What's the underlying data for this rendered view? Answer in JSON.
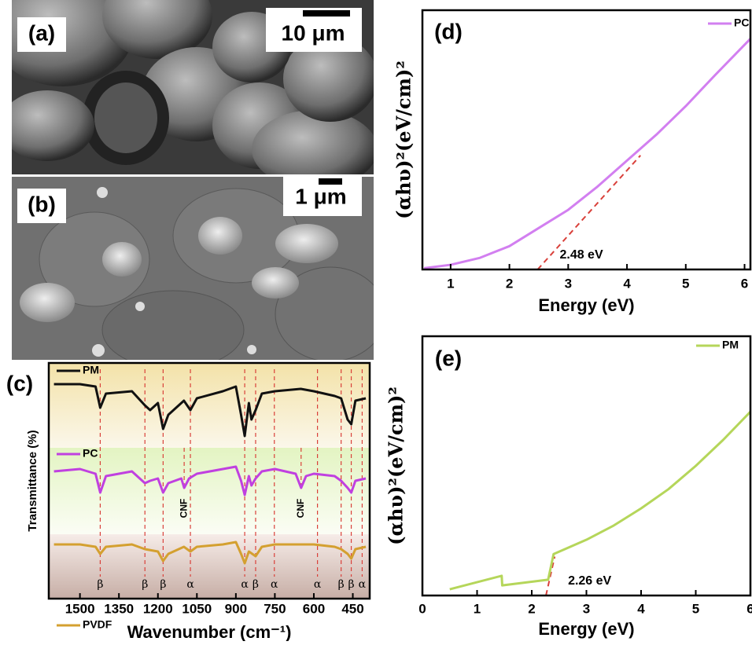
{
  "images": [
    {
      "label": "(a)",
      "scale_bar": "10 μm"
    },
    {
      "label": "(b)",
      "scale_bar": "1 μm"
    }
  ],
  "chart_data": [
    {
      "type": "line",
      "panel_label": "(c)",
      "xlabel": "Wavenumber (cm⁻¹)",
      "ylabel": "Transmittance (%)",
      "xlim": [
        1620,
        385
      ],
      "ylim": [
        0,
        100
      ],
      "xticks": [
        1500,
        1350,
        1200,
        1050,
        900,
        750,
        600,
        450
      ],
      "series": [
        {
          "name": "PM",
          "color": "#111111",
          "x": [
            1600,
            1500,
            1440,
            1422,
            1400,
            1300,
            1250,
            1230,
            1200,
            1180,
            1160,
            1100,
            1075,
            1050,
            950,
            900,
            880,
            866,
            850,
            840,
            824,
            800,
            750,
            650,
            600,
            520,
            495,
            470,
            456,
            440,
            400
          ],
          "values": [
            91,
            91,
            90,
            81,
            87,
            88,
            82,
            80,
            83,
            72,
            78,
            84,
            80,
            85,
            88,
            90,
            78,
            69,
            83,
            76,
            80,
            87,
            88,
            89,
            88,
            86,
            85,
            76,
            74,
            84,
            85
          ]
        },
        {
          "name": "PC",
          "color": "#c040e0",
          "x": [
            1600,
            1500,
            1440,
            1422,
            1400,
            1300,
            1250,
            1230,
            1200,
            1180,
            1160,
            1110,
            1099,
            1080,
            1050,
            950,
            900,
            880,
            866,
            850,
            840,
            824,
            800,
            750,
            670,
            649,
            630,
            600,
            520,
            495,
            470,
            456,
            440,
            400
          ],
          "values": [
            54,
            55,
            53,
            45,
            52,
            54,
            49,
            50,
            51,
            45,
            49,
            51,
            47,
            51,
            53,
            55,
            56,
            50,
            44,
            52,
            48,
            51,
            54,
            55,
            53,
            47,
            52,
            53,
            52,
            50,
            47,
            45,
            50,
            51
          ]
        },
        {
          "name": "PVDF",
          "color": "#d4a030",
          "x": [
            1600,
            1500,
            1440,
            1422,
            1400,
            1300,
            1250,
            1200,
            1180,
            1160,
            1100,
            1075,
            1050,
            950,
            900,
            880,
            866,
            850,
            824,
            800,
            750,
            600,
            520,
            495,
            470,
            456,
            440,
            400
          ],
          "values": [
            23,
            23,
            22,
            19,
            22,
            23,
            21,
            20,
            16,
            19,
            22,
            20,
            22,
            23,
            24,
            19,
            15,
            20,
            18,
            22,
            23,
            23,
            22,
            21,
            19,
            17,
            21,
            22
          ]
        }
      ],
      "band_markers": [
        {
          "x": 1422,
          "label": "β"
        },
        {
          "x": 1250,
          "label": "β"
        },
        {
          "x": 1180,
          "label": "β"
        },
        {
          "x": 1075,
          "label": "α"
        },
        {
          "x": 866,
          "label": "α"
        },
        {
          "x": 824,
          "label": "β"
        },
        {
          "x": 752,
          "label": "α"
        },
        {
          "x": 586,
          "label": "α"
        },
        {
          "x": 495,
          "label": "β"
        },
        {
          "x": 456,
          "label": "β"
        },
        {
          "x": 414,
          "label": "α"
        }
      ],
      "cnf_markers": [
        {
          "x": 1099,
          "label": "CNF"
        },
        {
          "x": 649,
          "label": "CNF"
        }
      ]
    },
    {
      "type": "line",
      "panel_label": "(d)",
      "xlabel": "Energy (eV)",
      "ylabel": "(αhυ)²(eV/cm)²",
      "xlim": [
        0.52,
        6.1
      ],
      "ylim": [
        0,
        100
      ],
      "xticks": [
        1,
        2,
        3,
        4,
        5,
        6
      ],
      "series": [
        {
          "name": "PC",
          "color": "#d27ff0",
          "x": [
            0.55,
            1,
            1.5,
            2,
            2.5,
            3,
            3.5,
            4,
            4.5,
            5,
            5.5,
            6.1
          ],
          "values": [
            0.5,
            1.8,
            4.5,
            9,
            16,
            23,
            32,
            42,
            52,
            63,
            75,
            89
          ]
        }
      ],
      "tangent": {
        "x": [
          2.48,
          4.23
        ],
        "values": [
          0,
          44
        ],
        "color": "#d9403a"
      },
      "tangent_label": "2.48 eV"
    },
    {
      "type": "line",
      "panel_label": "(e)",
      "xlabel": "Energy (eV)",
      "ylabel": "(αhυ)²(eV/cm)²",
      "xlim": [
        0,
        6
      ],
      "ylim": [
        0,
        100
      ],
      "xticks": [
        0,
        1,
        2,
        3,
        4,
        5,
        6
      ],
      "series": [
        {
          "name": "PM",
          "color": "#b5d65a",
          "x": [
            0.5,
            1.45,
            1.46,
            2.3,
            2.4,
            3,
            3.5,
            4,
            4.5,
            5,
            5.5,
            6
          ],
          "values": [
            2.4,
            7.6,
            3.9,
            6.1,
            16,
            21.5,
            27,
            33.6,
            41,
            50,
            60,
            70.9
          ]
        }
      ],
      "tangent": {
        "x": [
          2.26,
          2.42
        ],
        "values": [
          0,
          15
        ],
        "color": "#d9403a"
      },
      "tangent_label": "2.26 eV"
    }
  ]
}
